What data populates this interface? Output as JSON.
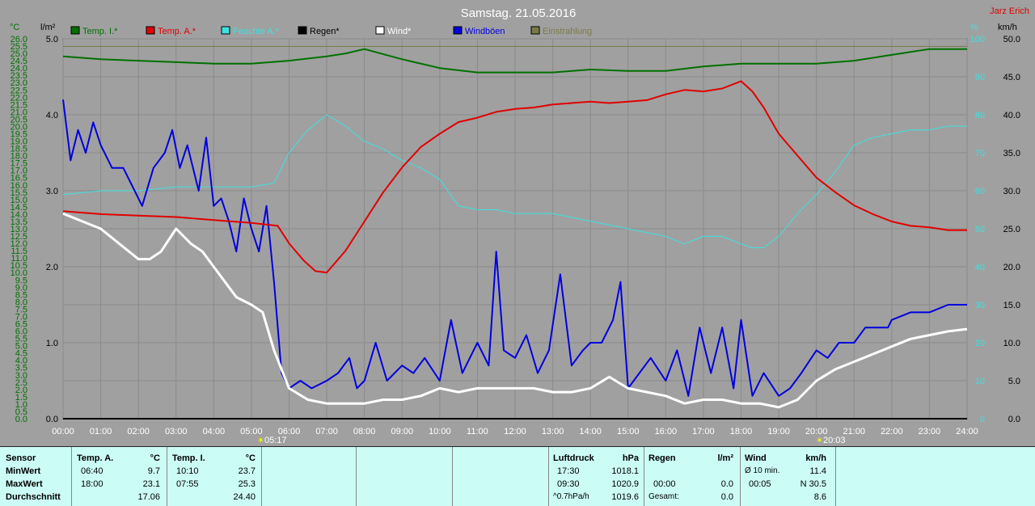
{
  "chart_data": {
    "type": "line",
    "title": "Samstag. 21.05.2016",
    "author": "Jarz Erich",
    "x_ticks": [
      "00:00",
      "01:00",
      "02:00",
      "03:00",
      "04:00",
      "05:00",
      "06:00",
      "07:00",
      "08:00",
      "09:00",
      "10:00",
      "11:00",
      "12:00",
      "13:00",
      "14:00",
      "15:00",
      "16:00",
      "17:00",
      "18:00",
      "19:00",
      "20:00",
      "21:00",
      "22:00",
      "23:00",
      "24:00"
    ],
    "sunrise": "05:17",
    "sunset": "20:03",
    "axes": {
      "temp": {
        "unit": "°C",
        "range": [
          0,
          26
        ],
        "ticks": [
          "0.0",
          "0.5",
          "1.0",
          "1.5",
          "2.0",
          "2.5",
          "3.0",
          "3.5",
          "4.0",
          "4.5",
          "5.0",
          "5.5",
          "6.0",
          "6.5",
          "7.0",
          "7.5",
          "8.0",
          "8.5",
          "9.0",
          "9.5",
          "10.0",
          "10.5",
          "11.0",
          "11.5",
          "12.0",
          "12.5",
          "13.0",
          "13.5",
          "14.0",
          "14.5",
          "15.0",
          "15.5",
          "16.0",
          "16.5",
          "17.0",
          "17.5",
          "18.0",
          "18.5",
          "19.0",
          "19.5",
          "20.0",
          "20.5",
          "21.0",
          "21.5",
          "22.0",
          "22.5",
          "23.0",
          "23.5",
          "24.0",
          "24.5",
          "25.0",
          "25.5",
          "26.0"
        ]
      },
      "rain": {
        "unit": "l/m²",
        "range": [
          0,
          5
        ],
        "ticks": [
          "0.0",
          "1.0",
          "2.0",
          "3.0",
          "4.0",
          "5.0"
        ]
      },
      "humidity": {
        "unit": "%",
        "range": [
          0,
          100
        ],
        "ticks": [
          "0",
          "10",
          "20",
          "30",
          "40",
          "50",
          "60",
          "70",
          "80",
          "90",
          "100"
        ]
      },
      "wind": {
        "unit": "km/h",
        "range": [
          0,
          50
        ],
        "ticks": [
          "0.0",
          "5.0",
          "10.0",
          "15.0",
          "20.0",
          "25.0",
          "30.0",
          "35.0",
          "40.0",
          "45.0",
          "50.0"
        ]
      }
    },
    "legend": [
      {
        "name": "Temp. I.*",
        "color": "#007000"
      },
      {
        "name": "Temp. A.*",
        "color": "#e00000"
      },
      {
        "name": "Feuchte A.*",
        "color": "#40e0e0"
      },
      {
        "name": "Regen*",
        "color": "#000000"
      },
      {
        "name": "Wind*",
        "color": "#ffffff"
      },
      {
        "name": "Windböen",
        "color": "#0000e0"
      },
      {
        "name": "Einstrahlung",
        "color": "#7a7a48"
      }
    ],
    "series": [
      {
        "name": "Temp. I.*",
        "axis": "temp",
        "color": "#007000",
        "x": [
          0,
          1,
          2,
          3,
          4,
          5,
          6,
          7,
          7.5,
          8,
          9,
          10,
          11,
          12,
          13,
          14,
          15,
          16,
          17,
          18,
          19,
          20,
          21,
          22,
          23,
          24
        ],
        "y": [
          24.8,
          24.6,
          24.5,
          24.4,
          24.3,
          24.3,
          24.5,
          24.8,
          25.0,
          25.3,
          24.6,
          24.0,
          23.7,
          23.7,
          23.7,
          23.9,
          23.8,
          23.8,
          24.1,
          24.3,
          24.3,
          24.3,
          24.5,
          24.9,
          25.3,
          25.3
        ]
      },
      {
        "name": "Temp. A.*",
        "axis": "temp",
        "color": "#e00000",
        "x": [
          0,
          1,
          2,
          3,
          4,
          5,
          5.7,
          6,
          6.4,
          6.7,
          7,
          7.5,
          8,
          8.5,
          9,
          9.5,
          10,
          10.5,
          11,
          11.5,
          12,
          12.5,
          13,
          13.5,
          14,
          14.5,
          15,
          15.5,
          16,
          16.5,
          17,
          17.5,
          18,
          18.3,
          18.6,
          19,
          19.5,
          20,
          20.5,
          21,
          21.5,
          22,
          22.5,
          23,
          23.5,
          24
        ],
        "y": [
          14.2,
          14.0,
          13.9,
          13.8,
          13.6,
          13.4,
          13.2,
          12.0,
          10.8,
          10.1,
          10.0,
          11.5,
          13.5,
          15.5,
          17.2,
          18.6,
          19.5,
          20.3,
          20.6,
          21.0,
          21.2,
          21.3,
          21.5,
          21.6,
          21.7,
          21.6,
          21.7,
          21.8,
          22.2,
          22.5,
          22.4,
          22.6,
          23.1,
          22.4,
          21.3,
          19.5,
          18.0,
          16.5,
          15.5,
          14.6,
          14.0,
          13.5,
          13.2,
          13.1,
          12.9,
          12.9
        ]
      },
      {
        "name": "Feuchte A.*",
        "axis": "humidity",
        "color": "#40e0e0",
        "x": [
          0,
          1,
          2,
          3,
          4,
          5,
          5.6,
          6,
          6.5,
          7,
          7.5,
          8,
          8.5,
          9,
          9.5,
          10,
          10.5,
          11,
          11.5,
          12,
          12.5,
          13,
          13.5,
          14,
          14.5,
          15,
          15.5,
          16,
          16.5,
          17,
          17.5,
          18,
          18.3,
          18.6,
          19,
          19.5,
          20,
          20.5,
          21,
          21.5,
          22,
          22.5,
          23,
          23.5,
          24
        ],
        "y": [
          59,
          60,
          60,
          61,
          61,
          61,
          62,
          70,
          76,
          80,
          77,
          73,
          71,
          68,
          66,
          63,
          56,
          55,
          55,
          54,
          54,
          54,
          53,
          52,
          51,
          50,
          49,
          48,
          46,
          48,
          48,
          46,
          45,
          45,
          48,
          54,
          59,
          65,
          72,
          74,
          75,
          76,
          76,
          77,
          77
        ]
      },
      {
        "name": "Wind*",
        "axis": "wind",
        "color": "#ffffff",
        "x": [
          0,
          0.5,
          1,
          1.5,
          2,
          2.3,
          2.6,
          3,
          3.4,
          3.7,
          4,
          4.3,
          4.6,
          5,
          5.3,
          5.6,
          6,
          6.5,
          7,
          7.5,
          8,
          8.5,
          9,
          9.5,
          10,
          10.5,
          11,
          11.5,
          12,
          12.5,
          13,
          13.5,
          14,
          14.5,
          15,
          15.5,
          16,
          16.5,
          17,
          17.5,
          18,
          18.5,
          19,
          19.5,
          20,
          20.5,
          21,
          21.5,
          22,
          22.5,
          23,
          23.5,
          24
        ],
        "y": [
          27,
          26,
          25,
          23,
          21,
          21,
          22,
          25,
          23,
          22,
          20,
          18,
          16,
          15,
          14,
          9,
          4,
          2.5,
          2,
          2,
          2,
          2.5,
          2.5,
          3,
          4,
          3.5,
          4,
          4,
          4,
          4,
          3.5,
          3.5,
          4,
          5.5,
          4,
          3.5,
          3,
          2,
          2.5,
          2.5,
          2,
          2,
          1.5,
          2.5,
          5,
          6.5,
          7.5,
          8.5,
          9.5,
          10.5,
          11,
          11.5,
          11.8
        ]
      },
      {
        "name": "Windböen",
        "axis": "wind",
        "color": "#0000e0",
        "x": [
          0,
          0.2,
          0.4,
          0.6,
          0.8,
          1,
          1.3,
          1.6,
          1.9,
          2.1,
          2.4,
          2.7,
          2.9,
          3.1,
          3.3,
          3.6,
          3.8,
          4,
          4.2,
          4.4,
          4.6,
          4.8,
          5,
          5.2,
          5.4,
          5.6,
          5.8,
          6,
          6.3,
          6.6,
          7,
          7.3,
          7.6,
          7.8,
          8,
          8.3,
          8.6,
          9,
          9.3,
          9.6,
          10,
          10.3,
          10.6,
          11,
          11.3,
          11.5,
          11.7,
          12,
          12.3,
          12.6,
          12.9,
          13.2,
          13.5,
          13.8,
          14,
          14.3,
          14.6,
          14.8,
          15,
          15.3,
          15.6,
          16,
          16.3,
          16.6,
          16.9,
          17.2,
          17.5,
          17.8,
          18,
          18.3,
          18.6,
          19,
          19.3,
          19.6,
          20,
          20.3,
          20.6,
          21,
          21.3,
          21.6,
          21.9,
          22,
          22.5,
          23,
          23.5,
          24
        ],
        "y": [
          42,
          34,
          38,
          35,
          39,
          36,
          33,
          33,
          30,
          28,
          33,
          35,
          38,
          33,
          36,
          30,
          37,
          28,
          29,
          26,
          22,
          29,
          25,
          22,
          28,
          18,
          6,
          4,
          5,
          4,
          5,
          6,
          8,
          4,
          5,
          10,
          5,
          7,
          6,
          8,
          5,
          13,
          6,
          10,
          7,
          22,
          9,
          8,
          11,
          6,
          9,
          19,
          7,
          9,
          10,
          10,
          13,
          18,
          4,
          6,
          8,
          5,
          9,
          3,
          12,
          6,
          12,
          4,
          13,
          3,
          6,
          3,
          4,
          6,
          9,
          8,
          10,
          10,
          12,
          12,
          12,
          13,
          14,
          14,
          15,
          15
        ]
      },
      {
        "name": "Regen*",
        "axis": "rain",
        "color": "#000000",
        "x": [
          0,
          24
        ],
        "y": [
          0,
          0
        ]
      },
      {
        "name": "Einstrahlung",
        "axis": "humidity",
        "color": "#7a7a48",
        "x": [
          0,
          2,
          4,
          6,
          8,
          10,
          12,
          14,
          16,
          18,
          20,
          22,
          24
        ],
        "y": [
          98,
          98,
          98,
          98,
          98,
          98,
          98,
          98,
          98,
          98,
          98,
          98,
          98
        ]
      }
    ]
  },
  "summary": {
    "sensor_block": {
      "title": "Sensor",
      "rows": [
        "MinWert",
        "MaxWert",
        "Durchschnitt"
      ]
    },
    "temp_a": {
      "title": "Temp. A.",
      "unit": "°C",
      "min_time": "06:40",
      "min_value": "9.7",
      "max_time": "18:00",
      "max_value": "23.1",
      "avg_value": "17.06"
    },
    "temp_i": {
      "title": "Temp. I.",
      "unit": "°C",
      "min_time": "10:10",
      "min_value": "23.7",
      "max_time": "07:55",
      "max_value": "25.3",
      "avg_value": "24.40"
    },
    "luftdruck": {
      "title": "Luftdruck",
      "unit": "hPa",
      "row1_label": "17:30",
      "row1_value": "1018.1",
      "row2_label": "09:30",
      "row2_value": "1020.9",
      "row3_label": "^0.7hPa/h",
      "row3_value": "1019.6"
    },
    "regen": {
      "title": "Regen",
      "unit": "l/m²",
      "row2_label": "00:00",
      "row2_value": "0.0",
      "row3_label": "Gesamt:",
      "row3_value": "0.0"
    },
    "wind": {
      "title": "Wind",
      "unit": "km/h",
      "row1_label": "Ø 10 min.",
      "row1_value": "11.4",
      "row2_label": "00:05",
      "row2_value": "N 30.5",
      "row3_value": "8.6"
    }
  }
}
